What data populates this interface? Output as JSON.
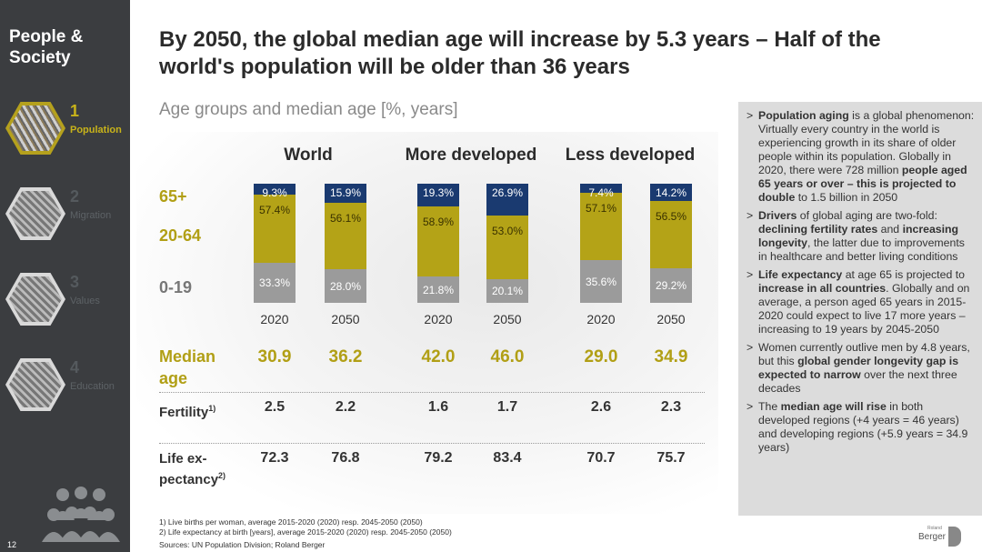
{
  "sidebar": {
    "section_title": "People & Society",
    "items": [
      {
        "num": "1",
        "label": "Population",
        "active": true
      },
      {
        "num": "2",
        "label": "Migration",
        "active": false
      },
      {
        "num": "3",
        "label": "Values",
        "active": false
      },
      {
        "num": "4",
        "label": "Education",
        "active": false
      }
    ],
    "page_number": "12"
  },
  "header": {
    "title": "By 2050, the global median age will increase by 5.3 years – Half of the world's population will be older than 36 years",
    "subtitle": "Age groups and median age [%, years]"
  },
  "colors": {
    "age_65_plus": "#1a3a70",
    "age_20_64": "#b4a317",
    "age_0_19": "#9b9b9b",
    "accent": "#b19f15",
    "sidebar": "#3b3d40"
  },
  "row_labels": {
    "age_65": "65+",
    "age_20_64": "20-64",
    "age_0_19": "0-19",
    "median_line1": "Median",
    "median_line2": "age",
    "fertility": "Fertility",
    "fertility_sup": "1)",
    "life_line1": "Life ex-",
    "life_line2": "pectancy",
    "life_sup": "2)"
  },
  "chart_data": {
    "type": "bar",
    "stacked": true,
    "groups": [
      "World",
      "More developed",
      "Less developed"
    ],
    "categories": [
      "2020",
      "2050",
      "2020",
      "2050",
      "2020",
      "2050"
    ],
    "series": [
      {
        "name": "0-19",
        "values": [
          33.3,
          28.0,
          21.8,
          20.1,
          35.6,
          29.2
        ]
      },
      {
        "name": "20-64",
        "values": [
          57.4,
          56.1,
          58.9,
          53.0,
          57.1,
          56.5
        ]
      },
      {
        "name": "65+",
        "values": [
          9.3,
          15.9,
          19.3,
          26.9,
          7.4,
          14.2
        ]
      }
    ],
    "unit": "%"
  },
  "stats": {
    "median_age": [
      "30.9",
      "36.2",
      "42.0",
      "46.0",
      "29.0",
      "34.9"
    ],
    "fertility": [
      "2.5",
      "2.2",
      "1.6",
      "1.7",
      "2.6",
      "2.3"
    ],
    "life_expectancy": [
      "72.3",
      "76.8",
      "79.2",
      "83.4",
      "70.7",
      "75.7"
    ]
  },
  "right_panel": {
    "bullets": [
      {
        "parts": [
          [
            "b",
            "Population aging"
          ],
          [
            "t",
            " is a global phenomenon: Virtually every country in the world is experiencing growth in its share of older people within its population. Globally in 2020, there were 728 million "
          ],
          [
            "b",
            "people aged 65 years or over – this is projected to double"
          ],
          [
            "t",
            " to 1.5 billion in 2050"
          ]
        ]
      },
      {
        "parts": [
          [
            "b",
            "Drivers"
          ],
          [
            "t",
            " of global aging are two-fold: "
          ],
          [
            "b",
            "declining fertility rates"
          ],
          [
            "t",
            " and "
          ],
          [
            "b",
            "increasing longevity"
          ],
          [
            "t",
            ", the latter due to improvements in healthcare and better living conditions"
          ]
        ]
      },
      {
        "parts": [
          [
            "b",
            "Life expectancy"
          ],
          [
            "t",
            " at age 65 is projected to "
          ],
          [
            "b",
            "increase in all countries"
          ],
          [
            "t",
            ". Globally and on average, a person aged 65 years in 2015-2020 could expect to live 17 more years – increasing to 19 years by 2045-2050"
          ]
        ]
      },
      {
        "parts": [
          [
            "t",
            "Women currently outlive men by 4.8 years, but this "
          ],
          [
            "b",
            "global gender longevity gap is expected to narrow"
          ],
          [
            "t",
            " over the next three decades"
          ]
        ]
      },
      {
        "parts": [
          [
            "t",
            "The "
          ],
          [
            "b",
            "median age will rise"
          ],
          [
            "t",
            " in both developed regions (+4 years = 46 years) and developing regions (+5.9 years = 34.9 years)"
          ]
        ]
      }
    ]
  },
  "footnotes": {
    "f1": "1) Live births per woman, average 2015-2020 (2020) resp. 2045-2050 (2050)",
    "f2": "2) Life expectancy at birth [years], average 2015-2020 (2020) resp. 2045-2050 (2050)",
    "sources": "Sources: UN Population Division; Roland Berger"
  },
  "logo": {
    "small": "Roland",
    "text": "Berger"
  }
}
